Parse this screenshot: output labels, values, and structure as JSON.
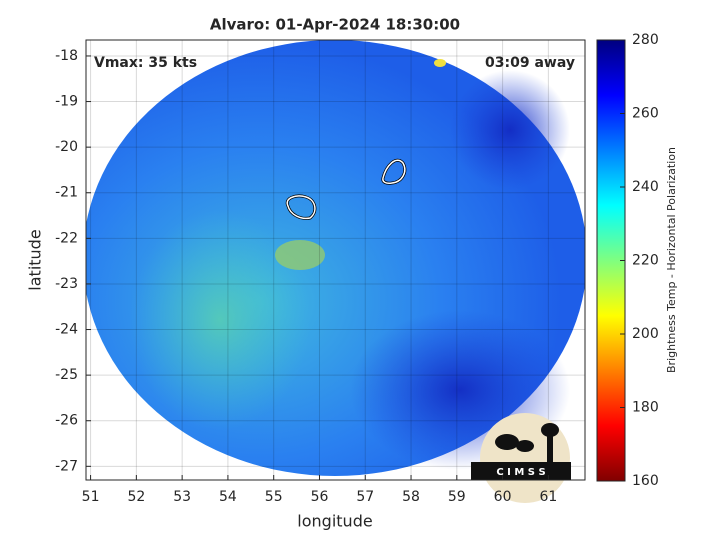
{
  "chart_data": {
    "type": "image",
    "title": "Alvaro: 01-Apr-2024 18:30:00",
    "annotations": [
      "Vmax: 35 kts",
      "03:09 away"
    ],
    "x_label": "longitude",
    "y_label": "latitude",
    "xlim": [
      50.9,
      61.8
    ],
    "xticks": [
      51,
      52,
      53,
      54,
      55,
      56,
      57,
      58,
      59,
      60,
      61
    ],
    "ylim": [
      -27.3,
      -17.65
    ],
    "yticks": [
      -27,
      -26,
      -25,
      -24,
      -23,
      -22,
      -21,
      -20,
      -19,
      -18
    ],
    "grid": true,
    "colorbar": {
      "label": "Brightness Temp - Horizontal Polarization",
      "colormap": "jet",
      "lim": [
        160,
        280
      ],
      "ticks": [
        160,
        180,
        200,
        220,
        240,
        260,
        280
      ]
    },
    "logo_text": "C I M S S"
  }
}
